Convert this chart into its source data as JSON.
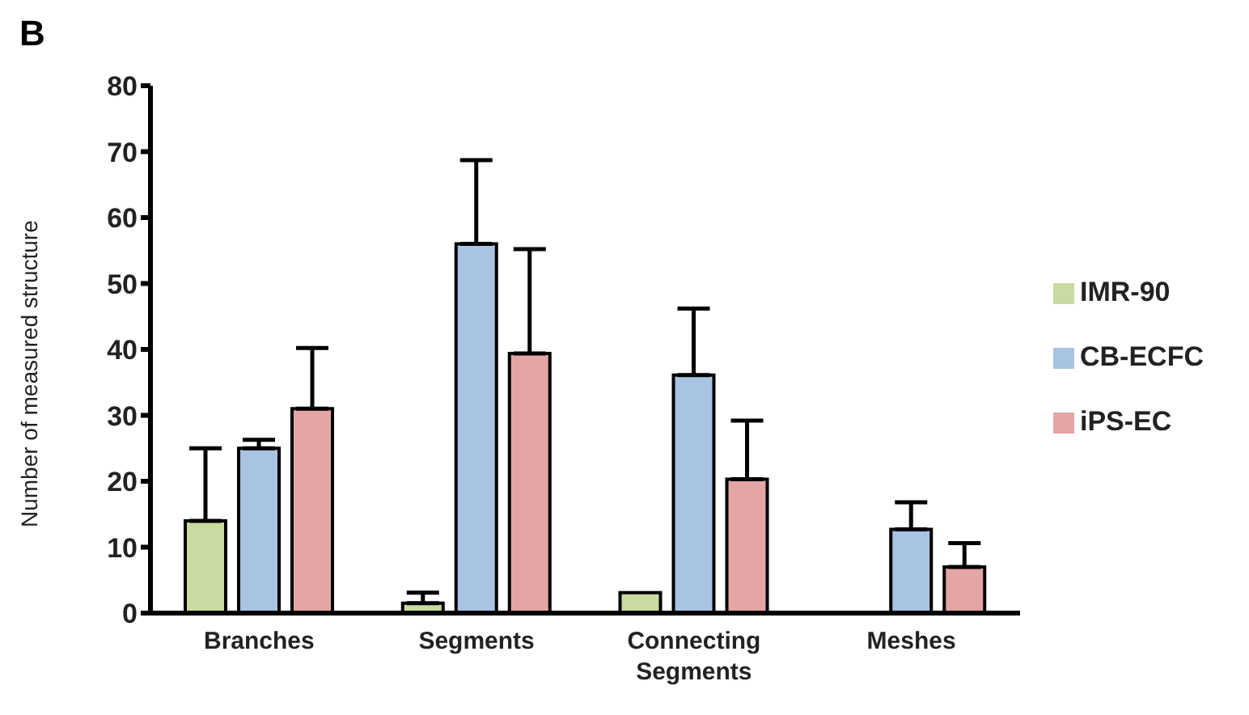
{
  "chart_data": {
    "type": "bar",
    "title": "B",
    "ylabel": "Number of measured structure",
    "categories": [
      "Branches",
      "Segments",
      "Connecting Segments",
      "Meshes"
    ],
    "series": [
      {
        "name": "IMR-90",
        "color": "#c9dba0",
        "values": [
          14,
          1.5,
          3.1,
          0
        ],
        "errors": [
          [
            14,
            25
          ],
          [
            1.5,
            3.1
          ],
          null,
          null
        ]
      },
      {
        "name": "CB-ECFC",
        "color": "#a9c3e3",
        "values": [
          25,
          56,
          36.1,
          12.7
        ],
        "errors": [
          [
            25,
            26.3
          ],
          [
            56,
            68.7
          ],
          [
            36.1,
            46.2
          ],
          [
            12.7,
            16.8
          ]
        ]
      },
      {
        "name": "iPS-EC",
        "color": "#e3a5a5",
        "values": [
          31,
          39.4,
          20.3,
          7
        ],
        "errors": [
          [
            31,
            40.2
          ],
          [
            39.4,
            55.2
          ],
          [
            20.3,
            29.2
          ],
          [
            7,
            10.6
          ]
        ]
      }
    ],
    "ylim": [
      0,
      80
    ],
    "yticks": [
      0,
      10,
      20,
      30,
      40,
      50,
      60,
      70,
      80
    ],
    "grid": false,
    "legend": "right"
  }
}
